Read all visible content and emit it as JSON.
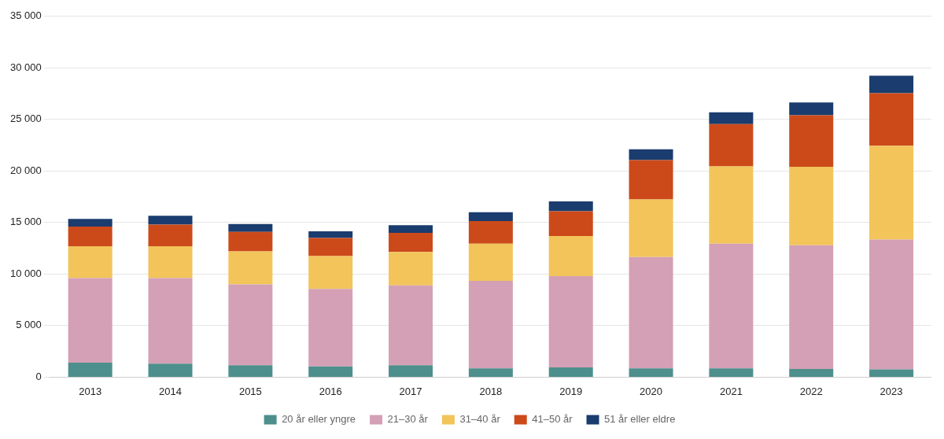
{
  "chart_data": {
    "type": "bar",
    "stacked": true,
    "categories": [
      "2013",
      "2014",
      "2015",
      "2016",
      "2017",
      "2018",
      "2019",
      "2020",
      "2021",
      "2022",
      "2023"
    ],
    "series": [
      {
        "name": "20 år eller yngre",
        "color": "#4d8f8c",
        "values": [
          1400,
          1300,
          1150,
          1050,
          1150,
          850,
          950,
          850,
          850,
          800,
          750
        ]
      },
      {
        "name": "21–30 år",
        "color": "#d4a0b5",
        "values": [
          8200,
          8300,
          7850,
          7500,
          7750,
          8500,
          8850,
          10800,
          12100,
          12000,
          12600
        ]
      },
      {
        "name": "31–40 år",
        "color": "#f2c45a",
        "values": [
          3100,
          3100,
          3200,
          3200,
          3250,
          3600,
          3900,
          5600,
          7500,
          7600,
          9100
        ]
      },
      {
        "name": "41–50 år",
        "color": "#cc4a1a",
        "values": [
          1900,
          2100,
          1900,
          1750,
          1850,
          2200,
          2400,
          3800,
          4100,
          5000,
          5100
        ]
      },
      {
        "name": "51 år eller eldre",
        "color": "#1a3c6e",
        "values": [
          750,
          850,
          750,
          650,
          750,
          850,
          950,
          1050,
          1150,
          1250,
          1700
        ]
      }
    ],
    "ylim": [
      0,
      35000
    ],
    "yticks": [
      0,
      {
        "value": 5000,
        "label": "5 000"
      },
      {
        "value": 10000,
        "label": "10 000"
      },
      {
        "value": 15000,
        "label": "15 000"
      },
      {
        "value": 20000,
        "label": "20 000"
      },
      {
        "value": 25000,
        "label": "25 000"
      },
      {
        "value": 30000,
        "label": "30 000"
      },
      {
        "value": 35000,
        "label": "35 000"
      }
    ],
    "grid": true,
    "legend": "bottom"
  }
}
